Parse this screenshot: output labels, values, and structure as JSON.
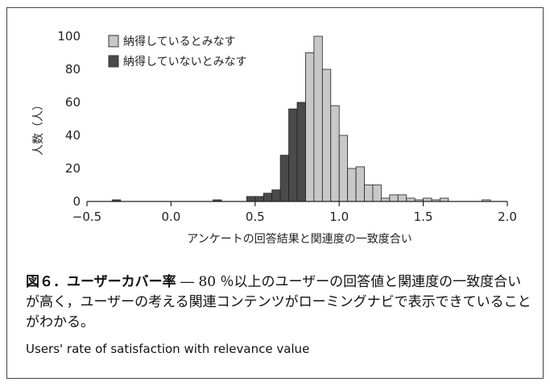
{
  "chart_data": {
    "type": "bar",
    "ylabel": "人数（人）",
    "xlabel": "アンケートの回答結果と関連度の一致度合い",
    "xlim": [
      -0.5,
      2.0
    ],
    "ylim": [
      0,
      100
    ],
    "x_ticks": [
      "−0.5",
      "0.0",
      "0.5",
      "1.0",
      "1.5",
      "2.0"
    ],
    "y_ticks": [
      "0",
      "20",
      "40",
      "60",
      "80",
      "100"
    ],
    "bin_width": 0.05,
    "series": [
      {
        "name": "納得しているとみなす",
        "color": "#c8c8c8",
        "bins": [
          {
            "x0": 0.8,
            "value": 90
          },
          {
            "x0": 0.85,
            "value": 100
          },
          {
            "x0": 0.9,
            "value": 80
          },
          {
            "x0": 0.95,
            "value": 58
          },
          {
            "x0": 1.0,
            "value": 40
          },
          {
            "x0": 1.05,
            "value": 20
          },
          {
            "x0": 1.1,
            "value": 21
          },
          {
            "x0": 1.15,
            "value": 10
          },
          {
            "x0": 1.2,
            "value": 10
          },
          {
            "x0": 1.25,
            "value": 2
          },
          {
            "x0": 1.3,
            "value": 4
          },
          {
            "x0": 1.35,
            "value": 4
          },
          {
            "x0": 1.4,
            "value": 2
          },
          {
            "x0": 1.45,
            "value": 1
          },
          {
            "x0": 1.5,
            "value": 2
          },
          {
            "x0": 1.55,
            "value": 1
          },
          {
            "x0": 1.6,
            "value": 2
          },
          {
            "x0": 1.85,
            "value": 1
          }
        ]
      },
      {
        "name": "納得していないとみなす",
        "color": "#4a4a4a",
        "bins": [
          {
            "x0": -0.35,
            "value": 1
          },
          {
            "x0": 0.25,
            "value": 1
          },
          {
            "x0": 0.45,
            "value": 3
          },
          {
            "x0": 0.5,
            "value": 3
          },
          {
            "x0": 0.55,
            "value": 5
          },
          {
            "x0": 0.6,
            "value": 7
          },
          {
            "x0": 0.65,
            "value": 28
          },
          {
            "x0": 0.7,
            "value": 56
          },
          {
            "x0": 0.75,
            "value": 60
          }
        ]
      }
    ],
    "legend_position": "top-left"
  },
  "caption": {
    "fig_num": "図６．",
    "fig_title": "ユーザーカバー率",
    "body": " ― 80 ％以上のユーザーの回答値と関連度の一致度合いが高く，ユーザーの考える関連コンテンツがローミングナビで表示できていることがわかる。",
    "english": "Users' rate of satisfaction with relevance value"
  }
}
